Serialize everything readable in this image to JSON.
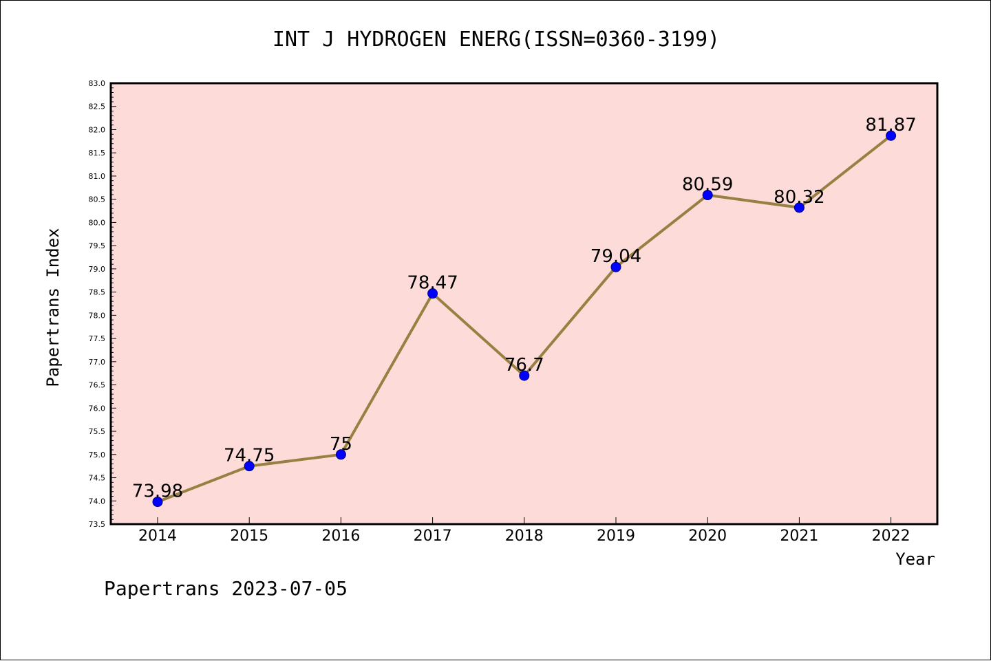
{
  "chart_data": {
    "type": "line",
    "title": "INT J HYDROGEN ENERG(ISSN=0360-3199)",
    "xlabel": "Year",
    "ylabel": "Papertrans Index",
    "categories": [
      "2014",
      "2015",
      "2016",
      "2017",
      "2018",
      "2019",
      "2020",
      "2021",
      "2022"
    ],
    "series": [
      {
        "values": [
          73.98,
          74.75,
          75,
          78.47,
          76.7,
          79.04,
          80.59,
          80.32,
          81.87
        ]
      }
    ],
    "data_labels": [
      "73.98",
      "74.75",
      "75",
      "78.47",
      "76.7",
      "79.04",
      "80.59",
      "80.32",
      "81.87"
    ],
    "ylim": [
      73.5,
      83.0
    ],
    "yticks": [
      "73.5",
      "74.0",
      "74.5",
      "75.0",
      "75.5",
      "76.0",
      "76.5",
      "77.0",
      "77.5",
      "78.0",
      "78.5",
      "79.0",
      "79.5",
      "80.0",
      "80.5",
      "81.0",
      "81.5",
      "82.0",
      "82.5",
      "83.0"
    ],
    "grid": false,
    "legend": "none",
    "colors": {
      "plot_background": "#fddbd8",
      "line": "#978041",
      "marker": "#0000ff",
      "marker_edge": "#000080"
    }
  },
  "footer": "Papertrans 2023-07-05"
}
